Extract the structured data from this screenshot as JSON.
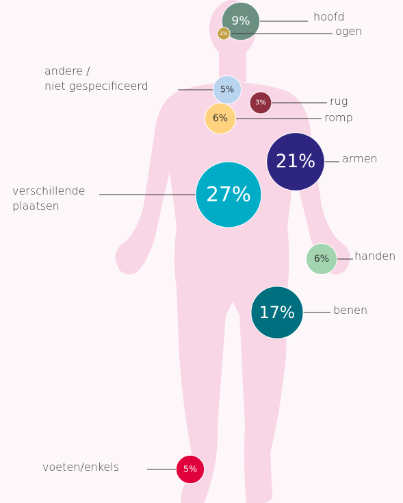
{
  "chart_data": {
    "type": "body-bubbles",
    "categories": [
      "hoofd",
      "ogen",
      "andere /\nniet gespecificeerd",
      "rug",
      "romp",
      "armen",
      "verschillende\nplaatsen",
      "handen",
      "benen",
      "voeten/enkels"
    ],
    "values": [
      9,
      1,
      5,
      3,
      6,
      21,
      27,
      6,
      17,
      5
    ],
    "value_labels": [
      "9%",
      "1%",
      "5%",
      "3%",
      "6%",
      "21%",
      "27%",
      "6%",
      "17%",
      "5%"
    ],
    "colors": [
      "#6b8f80",
      "#c4a048",
      "#b8d4ee",
      "#8e3040",
      "#ffd27f",
      "#2e2580",
      "#00acc6",
      "#a2d4b0",
      "#007080",
      "#e0003c"
    ]
  }
}
